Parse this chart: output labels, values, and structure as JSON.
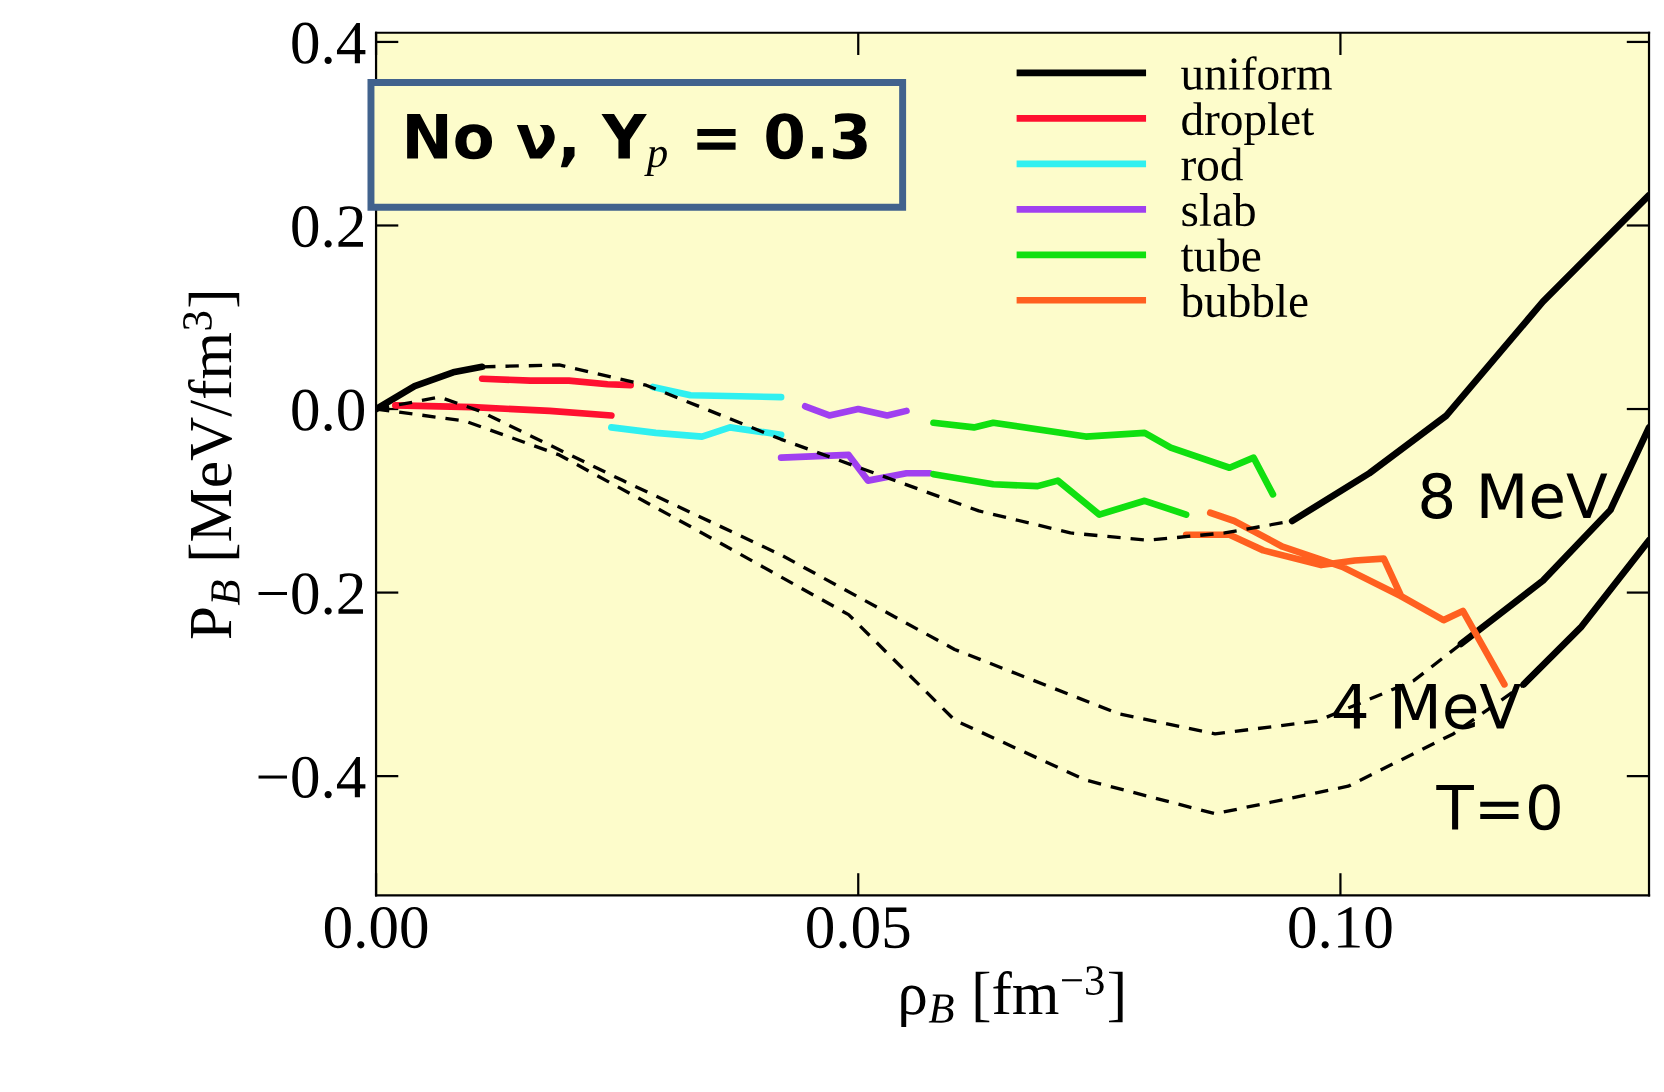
{
  "chart_data": {
    "type": "line",
    "xlabel": "ρ$_{B}$ [fm$^{−3}$]",
    "ylabel": "P$_{B}$ [MeV/fm$^{3}$]",
    "xlim": [
      0,
      0.132
    ],
    "ylim": [
      -0.53,
      0.41
    ],
    "xticks": [
      {
        "value": 0,
        "label": "0.00"
      },
      {
        "value": 0.05,
        "label": "0.05"
      },
      {
        "value": 0.1,
        "label": "0.10"
      }
    ],
    "yticks": [
      {
        "value": -0.4,
        "label": "−0.4"
      },
      {
        "value": -0.2,
        "label": "−0.2"
      },
      {
        "value": 0,
        "label": "0.0"
      },
      {
        "value": 0.2,
        "label": "0.2"
      },
      {
        "value": 0.4,
        "label": "0.4"
      }
    ],
    "grid": false,
    "legend": "top right",
    "marker": "none",
    "series": [
      {
        "name": "uniform",
        "color": "#000000",
        "line_style": "solid",
        "x": [
          0,
          0.004,
          0.008,
          0.011,
          null,
          0.095,
          0.103,
          0.111,
          0.121,
          0.132,
          null,
          0.1125,
          0.121,
          0.128,
          0.132,
          null,
          0.119,
          0.125,
          0.132
        ],
        "values": [
          0,
          0.025,
          0.04,
          0.046,
          null,
          -0.122,
          -0.07,
          -0.007,
          0.117,
          0.233,
          null,
          -0.256,
          -0.187,
          -0.11,
          -0.02,
          null,
          -0.3,
          -0.237,
          -0.143
        ]
      },
      {
        "name": "droplet",
        "color": "#ff1030",
        "line_style": "solid",
        "x": [
          0.011,
          0.016,
          0.02,
          0.024,
          0.0264,
          null,
          0.002,
          0.01,
          0.018,
          0.0244
        ],
        "values": [
          0.033,
          0.031,
          0.031,
          0.027,
          0.026,
          null,
          0.004,
          0.002,
          -0.002,
          -0.007
        ]
      },
      {
        "name": "rod",
        "color": "#30f0f0",
        "line_style": "solid",
        "x": [
          0.0287,
          0.0326,
          0.042,
          null,
          0.0244,
          0.029,
          0.0338,
          0.0367,
          0.042
        ],
        "values": [
          0.024,
          0.015,
          0.013,
          null,
          -0.02,
          -0.026,
          -0.03,
          -0.02,
          -0.028
        ]
      },
      {
        "name": "slab",
        "color": "#a040f0",
        "line_style": "solid",
        "x": [
          0.0445,
          0.047,
          0.05,
          0.053,
          0.055,
          null,
          0.042,
          0.049,
          0.051,
          0.055,
          0.0574
        ],
        "values": [
          0.003,
          -0.007,
          0,
          -0.007,
          -0.002,
          null,
          -0.053,
          -0.05,
          -0.078,
          -0.07,
          -0.07
        ]
      },
      {
        "name": "tube",
        "color": "#10e010",
        "line_style": "solid",
        "x": [
          0.0578,
          0.062,
          0.064,
          0.0736,
          0.0797,
          0.0824,
          0.0885,
          0.091,
          0.093,
          null,
          0.0578,
          0.064,
          0.0686,
          0.0707,
          0.075,
          0.0797,
          0.084
        ],
        "values": [
          -0.015,
          -0.02,
          -0.015,
          -0.03,
          -0.026,
          -0.042,
          -0.064,
          -0.053,
          -0.093,
          null,
          -0.071,
          -0.082,
          -0.084,
          -0.078,
          -0.115,
          -0.1,
          -0.115
        ]
      },
      {
        "name": "bubble",
        "color": "#ff6020",
        "line_style": "solid",
        "x": [
          0.0865,
          0.089,
          0.094,
          0.1002,
          0.1063,
          0.1107,
          0.1127,
          0.117,
          null,
          0.084,
          0.0885,
          0.092,
          0.098,
          0.1015,
          0.1045,
          0.1063
        ],
        "values": [
          -0.113,
          -0.122,
          -0.15,
          -0.172,
          -0.204,
          -0.23,
          -0.22,
          -0.3,
          null,
          -0.137,
          -0.137,
          -0.154,
          -0.17,
          -0.165,
          -0.163,
          -0.204
        ]
      },
      {
        "color": "#000000",
        "line_style": "dashed",
        "x": [
          0.011,
          0.019,
          0.028,
          0.042,
          0.0625,
          0.072,
          0.08,
          0.088,
          0.095
        ],
        "values": [
          0.046,
          0.048,
          0.026,
          -0.033,
          -0.111,
          -0.135,
          -0.143,
          -0.135,
          -0.122
        ]
      },
      {
        "color": "#000000",
        "line_style": "dashed",
        "x": [
          0,
          0.0066,
          0.0107,
          0.0256,
          0.042,
          0.06,
          0.077,
          0.087,
          0.0976,
          0.1076,
          0.1125
        ],
        "values": [
          0,
          0.013,
          -0.002,
          -0.078,
          -0.159,
          -0.262,
          -0.332,
          -0.354,
          -0.34,
          -0.296,
          -0.256
        ]
      },
      {
        "color": "#000000",
        "line_style": "dashed",
        "x": [
          0,
          0.0092,
          0.019,
          0.0326,
          0.049,
          0.06,
          0.0735,
          0.087,
          0.1008,
          0.1117,
          0.119
        ],
        "values": [
          0,
          -0.013,
          -0.05,
          -0.128,
          -0.224,
          -0.339,
          -0.404,
          -0.441,
          -0.411,
          -0.354,
          -0.3
        ]
      }
    ],
    "annotations": [
      "No ν, Y$_{p}$ = 0.3",
      "8 MeV",
      "4 MeV",
      "T=0"
    ]
  }
}
